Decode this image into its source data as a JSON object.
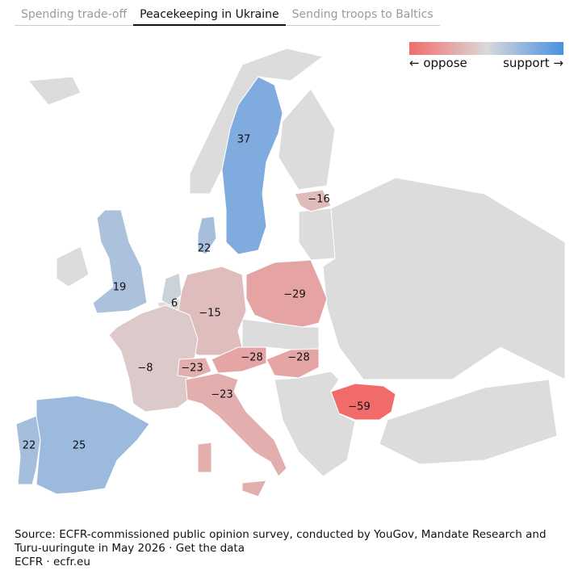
{
  "tabs": [
    "Spending trade-off",
    "Peacekeeping in Ukraine",
    "Sending troops to Baltics"
  ],
  "legend": {
    "low": "← oppose",
    "high": "support →",
    "oppose_color": "#f26b6b",
    "neutral_color": "#d9d9d9",
    "support_color": "#4a90e2"
  },
  "countries": [
    {
      "value": 37,
      "label": "37"
    },
    {
      "value": -16,
      "label": "−16"
    },
    {
      "value": 22,
      "label": "22"
    },
    {
      "value": 19,
      "label": "19"
    },
    {
      "value": 6,
      "label": "6"
    },
    {
      "value": -15,
      "label": "−15"
    },
    {
      "value": -29,
      "label": "−29"
    },
    {
      "value": -8,
      "label": "−8"
    },
    {
      "value": -23,
      "label": "−23"
    },
    {
      "value": -28,
      "label": "−28"
    },
    {
      "value": -28,
      "label": "−28"
    },
    {
      "value": -23,
      "label": "−23"
    },
    {
      "value": -59,
      "label": "−59"
    },
    {
      "value": 22,
      "label": "22"
    },
    {
      "value": 25,
      "label": "25"
    }
  ],
  "source": {
    "text": "Source: ECFR-commissioned public opinion survey, conducted by YouGov, Mandate Research and Turu-uuringute in May 2026 ·",
    "link": "Get the data",
    "credit": "ECFR · ecfr.eu"
  }
}
